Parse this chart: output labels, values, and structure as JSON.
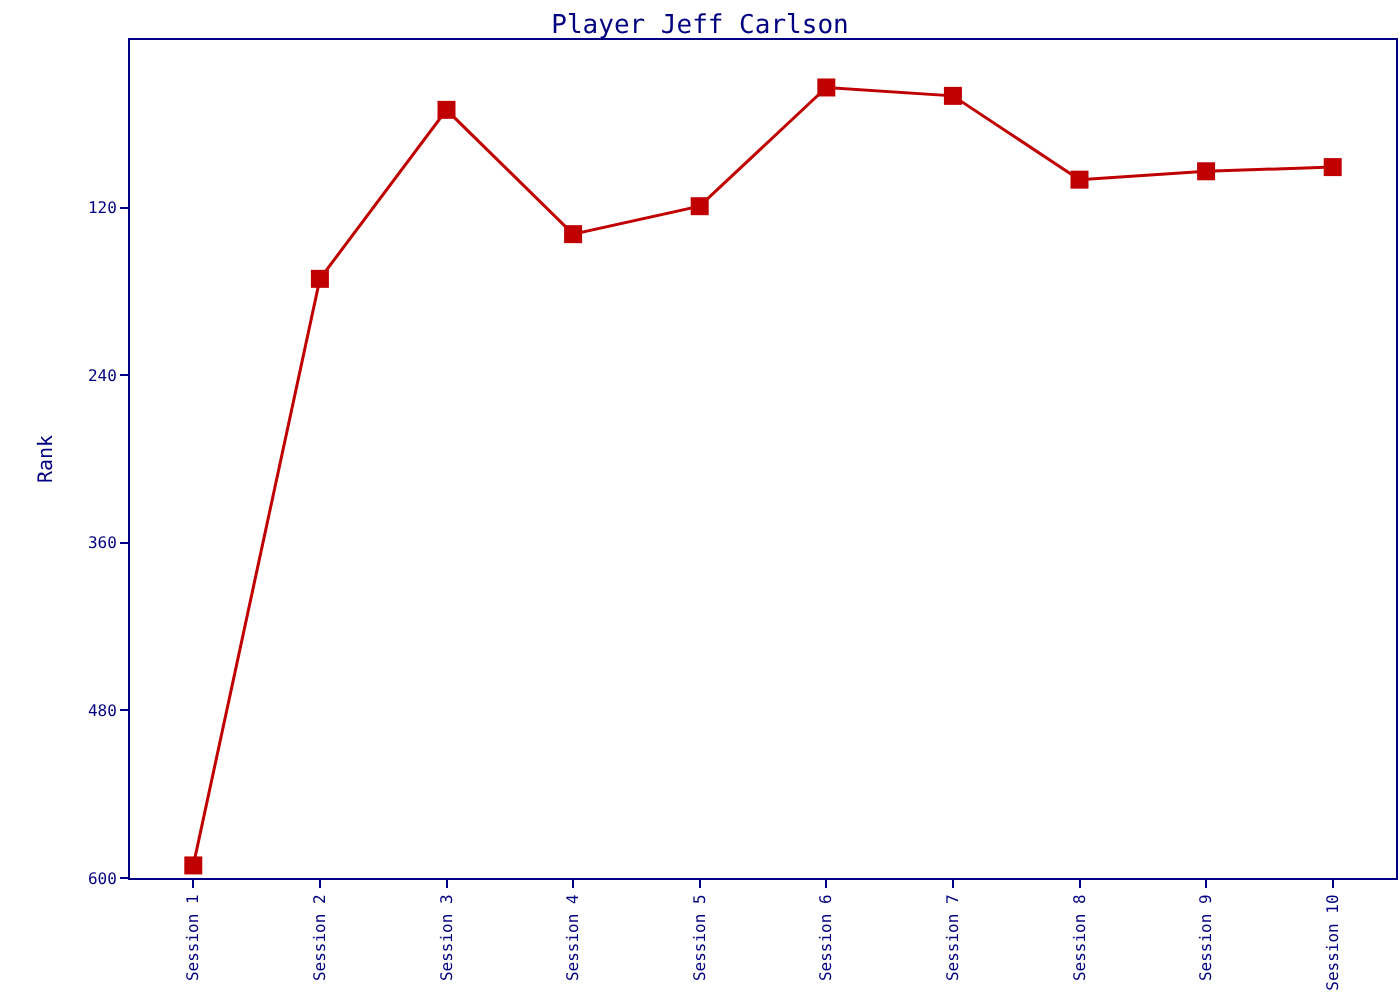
{
  "chart_data": {
    "type": "line",
    "title": "Player Jeff Carlson",
    "ylabel": "Rank",
    "categories": [
      "Session 1",
      "Session 2",
      "Session 3",
      "Session 4",
      "Session 5",
      "Session 6",
      "Session 7",
      "Session 8",
      "Session 9",
      "Session 10"
    ],
    "series": [
      {
        "color": "#c00000",
        "values": [
          591,
          171,
          50,
          139,
          119,
          34,
          40,
          100,
          94,
          91
        ]
      }
    ],
    "ylim": [
      600,
      0
    ],
    "yticks": [
      120,
      240,
      360,
      480,
      600
    ],
    "legend": false,
    "marker": "square",
    "line_style": "solid"
  }
}
